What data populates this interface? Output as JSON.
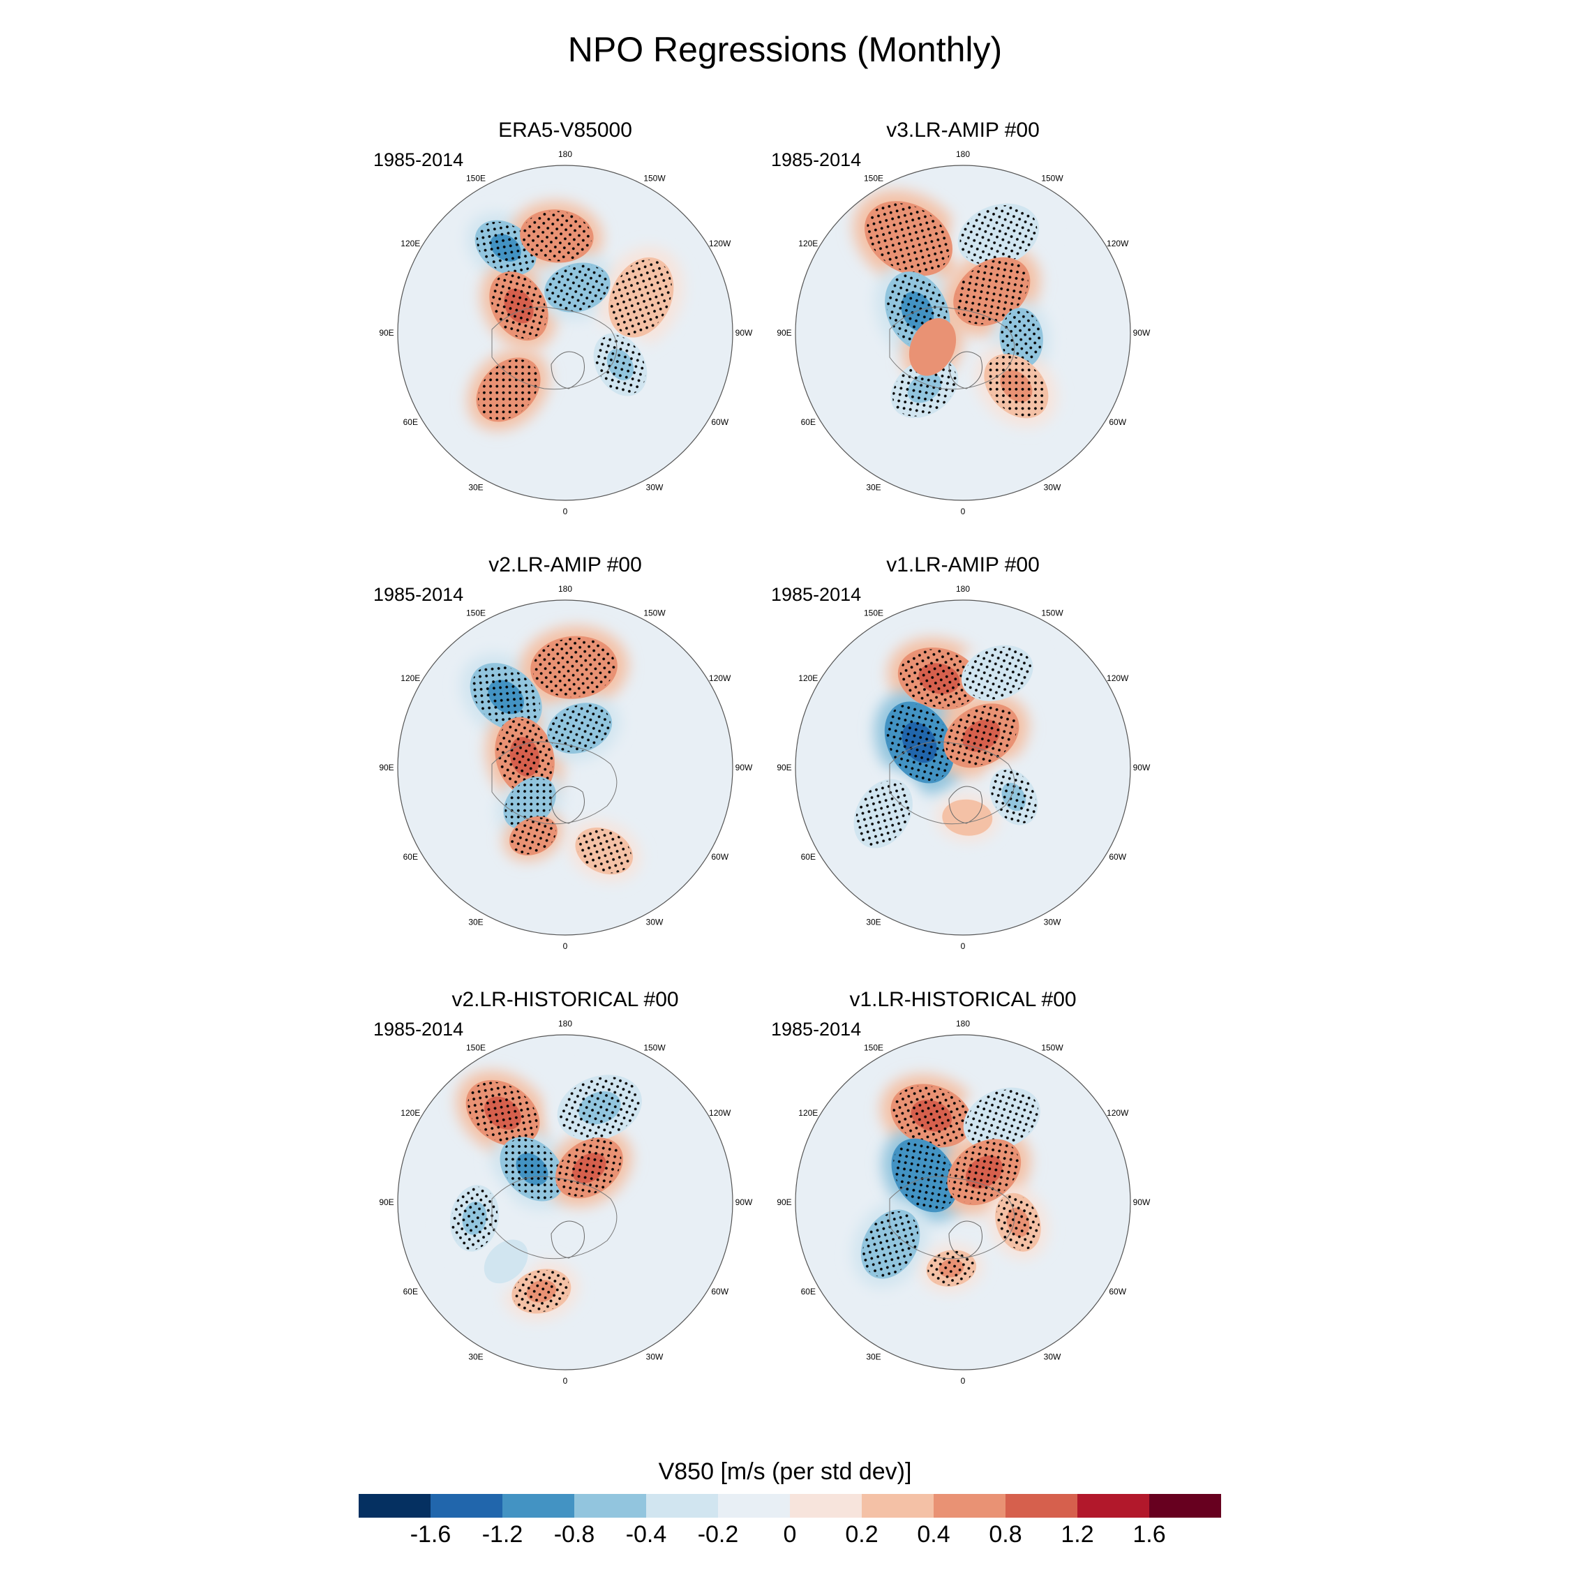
{
  "title": "NPO Regressions (Monthly)",
  "chart_data": {
    "type": "heatmap",
    "projection": "north-polar-stereographic",
    "variable": "V850",
    "period": "1985-2014",
    "longitude_labels": [
      "180",
      "150E",
      "120E",
      "90E",
      "60E",
      "30E",
      "0",
      "30W",
      "60W",
      "90W",
      "120W",
      "150W"
    ],
    "colorbar": {
      "title": "V850 [m/s (per std dev)]",
      "tick_labels": [
        "-1.6",
        "-1.2",
        "-0.8",
        "-0.4",
        "-0.2",
        "0",
        "0.2",
        "0.4",
        "0.8",
        "1.2",
        "1.6"
      ],
      "colors": [
        "#053061",
        "#2166ac",
        "#4393c3",
        "#92c5de",
        "#d1e5f0",
        "#e8eff5",
        "#f7e4dc",
        "#f4c1a6",
        "#e99274",
        "#d6604d",
        "#b2182b",
        "#67001f"
      ]
    },
    "panels": [
      {
        "title": "ERA5-V85000",
        "period": "1985-2014",
        "features": [
          {
            "lon": 145,
            "r": 0.62,
            "value": -1.0,
            "size": 0.2,
            "stipple": true
          },
          {
            "lon": 175,
            "r": 0.58,
            "value": 0.6,
            "size": 0.22,
            "stipple": true
          },
          {
            "lon": 120,
            "r": 0.32,
            "value": 0.9,
            "size": 0.22,
            "stipple": true
          },
          {
            "lon": 195,
            "r": 0.28,
            "value": -0.6,
            "size": 0.2,
            "stipple": true
          },
          {
            "lon": 245,
            "r": 0.5,
            "value": 0.3,
            "size": 0.25,
            "stipple": true
          },
          {
            "lon": 45,
            "r": 0.48,
            "value": 0.7,
            "size": 0.22,
            "stipple": true
          },
          {
            "lon": 300,
            "r": 0.38,
            "value": -0.5,
            "size": 0.2,
            "stipple": true
          }
        ]
      },
      {
        "title": "v3.LR-AMIP  #00",
        "period": "1985-2014",
        "features": [
          {
            "lon": 150,
            "r": 0.65,
            "value": 0.7,
            "size": 0.28,
            "stipple": true
          },
          {
            "lon": 200,
            "r": 0.62,
            "value": -0.4,
            "size": 0.25,
            "stipple": true
          },
          {
            "lon": 115,
            "r": 0.3,
            "value": -0.9,
            "size": 0.25,
            "stipple": true
          },
          {
            "lon": 215,
            "r": 0.3,
            "value": 0.7,
            "size": 0.25,
            "stipple": true
          },
          {
            "lon": 275,
            "r": 0.35,
            "value": -0.6,
            "size": 0.18,
            "stipple": true
          },
          {
            "lon": 35,
            "r": 0.4,
            "value": -0.5,
            "size": 0.22,
            "stipple": true
          },
          {
            "lon": 315,
            "r": 0.45,
            "value": 0.5,
            "size": 0.22,
            "stipple": true
          },
          {
            "lon": 65,
            "r": 0.2,
            "value": 0.6,
            "size": 0.18,
            "stipple": false
          }
        ]
      },
      {
        "title": "v2.LR-AMIP  #00",
        "period": "1985-2014",
        "features": [
          {
            "lon": 140,
            "r": 0.55,
            "value": -1.1,
            "size": 0.24,
            "stipple": true
          },
          {
            "lon": 185,
            "r": 0.6,
            "value": 0.7,
            "size": 0.26,
            "stipple": true
          },
          {
            "lon": 105,
            "r": 0.25,
            "value": 0.8,
            "size": 0.24,
            "stipple": true
          },
          {
            "lon": 200,
            "r": 0.25,
            "value": -0.7,
            "size": 0.2,
            "stipple": true
          },
          {
            "lon": 45,
            "r": 0.3,
            "value": -0.6,
            "size": 0.18,
            "stipple": true
          },
          {
            "lon": 25,
            "r": 0.45,
            "value": 0.6,
            "size": 0.15,
            "stipple": true
          },
          {
            "lon": 335,
            "r": 0.55,
            "value": 0.3,
            "size": 0.18,
            "stipple": true
          }
        ]
      },
      {
        "title": "v1.LR-AMIP  #00",
        "period": "1985-2014",
        "features": [
          {
            "lon": 165,
            "r": 0.55,
            "value": 0.9,
            "size": 0.25,
            "stipple": true
          },
          {
            "lon": 200,
            "r": 0.6,
            "value": -0.4,
            "size": 0.22,
            "stipple": true
          },
          {
            "lon": 120,
            "r": 0.3,
            "value": -1.4,
            "size": 0.26,
            "stipple": true
          },
          {
            "lon": 210,
            "r": 0.22,
            "value": 1.0,
            "size": 0.24,
            "stipple": true
          },
          {
            "lon": 60,
            "r": 0.55,
            "value": -0.4,
            "size": 0.22,
            "stipple": true
          },
          {
            "lon": 300,
            "r": 0.35,
            "value": -0.5,
            "size": 0.18,
            "stipple": true
          },
          {
            "lon": 355,
            "r": 0.3,
            "value": 0.3,
            "size": 0.15,
            "stipple": false
          }
        ]
      },
      {
        "title": "v2.LR-HISTORICAL  #00",
        "period": "1985-2014",
        "features": [
          {
            "lon": 145,
            "r": 0.65,
            "value": 1.0,
            "size": 0.24,
            "stipple": true
          },
          {
            "lon": 200,
            "r": 0.6,
            "value": -0.5,
            "size": 0.26,
            "stipple": true
          },
          {
            "lon": 135,
            "r": 0.28,
            "value": -0.9,
            "size": 0.22,
            "stipple": true
          },
          {
            "lon": 215,
            "r": 0.25,
            "value": 0.9,
            "size": 0.22,
            "stipple": true
          },
          {
            "lon": 80,
            "r": 0.55,
            "value": -0.5,
            "size": 0.2,
            "stipple": true
          },
          {
            "lon": 15,
            "r": 0.55,
            "value": 0.4,
            "size": 0.18,
            "stipple": true
          },
          {
            "lon": 45,
            "r": 0.5,
            "value": -0.4,
            "size": 0.15,
            "stipple": false
          }
        ]
      },
      {
        "title": "v1.LR-HISTORICAL  #00",
        "period": "1985-2014",
        "features": [
          {
            "lon": 160,
            "r": 0.55,
            "value": 0.9,
            "size": 0.25,
            "stipple": true
          },
          {
            "lon": 205,
            "r": 0.55,
            "value": -0.4,
            "size": 0.24,
            "stipple": true
          },
          {
            "lon": 125,
            "r": 0.28,
            "value": -1.2,
            "size": 0.24,
            "stipple": true
          },
          {
            "lon": 215,
            "r": 0.22,
            "value": 1.0,
            "size": 0.24,
            "stipple": true
          },
          {
            "lon": 60,
            "r": 0.5,
            "value": -0.6,
            "size": 0.22,
            "stipple": true
          },
          {
            "lon": 10,
            "r": 0.4,
            "value": 0.5,
            "size": 0.15,
            "stipple": true
          },
          {
            "lon": 290,
            "r": 0.35,
            "value": 0.4,
            "size": 0.18,
            "stipple": true
          }
        ]
      }
    ]
  }
}
